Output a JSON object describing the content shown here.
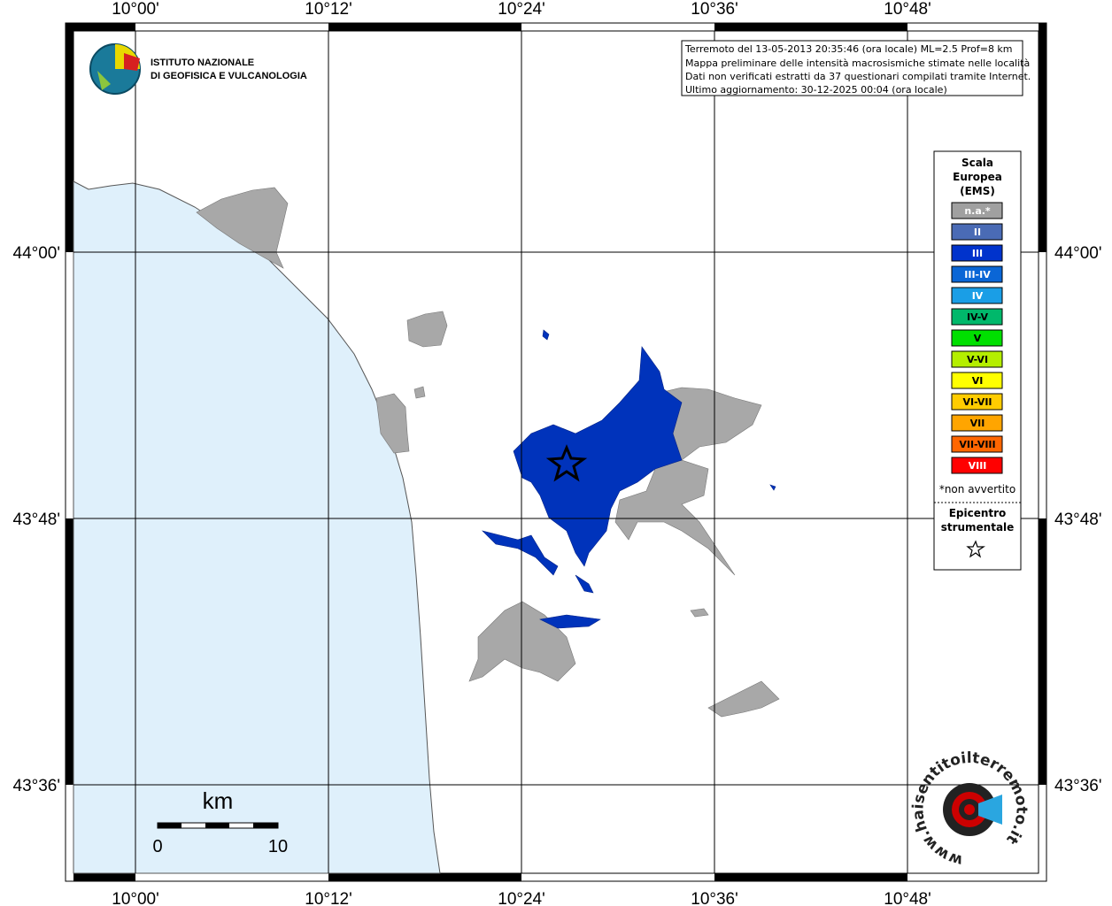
{
  "axes": {
    "lon_labels": [
      "10°00'",
      "10°12'",
      "10°24'",
      "10°36'",
      "10°48'"
    ],
    "lat_labels": [
      "44°00'",
      "43°48'",
      "43°36'"
    ]
  },
  "institute": {
    "lines": [
      "ISTITUTO NAZIONALE",
      "DI GEOFISICA E VULCANOLOGIA"
    ]
  },
  "info": {
    "lines": [
      "Terremoto del 13-05-2013 20:35:46 (ora locale) ML=2.5 Prof=8 km",
      "Mappa preliminare delle intensità macrosismiche stimate nelle località",
      "Dati non verificati estratti da 37 questionari compilati tramite Internet.",
      "Ultimo aggiornamento: 30-12-2025 00:04 (ora locale)"
    ]
  },
  "legend": {
    "title": [
      "Scala",
      "Europea",
      "(EMS)"
    ],
    "items": [
      {
        "label": "n.a.*",
        "color": "#a0a0a0"
      },
      {
        "label": "II",
        "color": "#4a6bb5"
      },
      {
        "label": "III",
        "color": "#0033cc"
      },
      {
        "label": "III-IV",
        "color": "#0a66d6"
      },
      {
        "label": "IV",
        "color": "#1a9ee6"
      },
      {
        "label": "IV-V",
        "color": "#00b86b"
      },
      {
        "label": "V",
        "color": "#00e000"
      },
      {
        "label": "V-VI",
        "color": "#b4ee00"
      },
      {
        "label": "VI",
        "color": "#ffff00"
      },
      {
        "label": "VI-VII",
        "color": "#ffcc00"
      },
      {
        "label": "VII",
        "color": "#ffa500"
      },
      {
        "label": "VII-VIII",
        "color": "#ff6600"
      },
      {
        "label": "VIII",
        "color": "#ff0000"
      }
    ],
    "note": "*non avvertito",
    "epicenter": [
      "Epicentro",
      "strumentale"
    ]
  },
  "scale_bar": {
    "unit": "km",
    "labels": [
      "0",
      "10"
    ]
  },
  "logo": {
    "text": "www.haisentitoilterremoto.it"
  }
}
